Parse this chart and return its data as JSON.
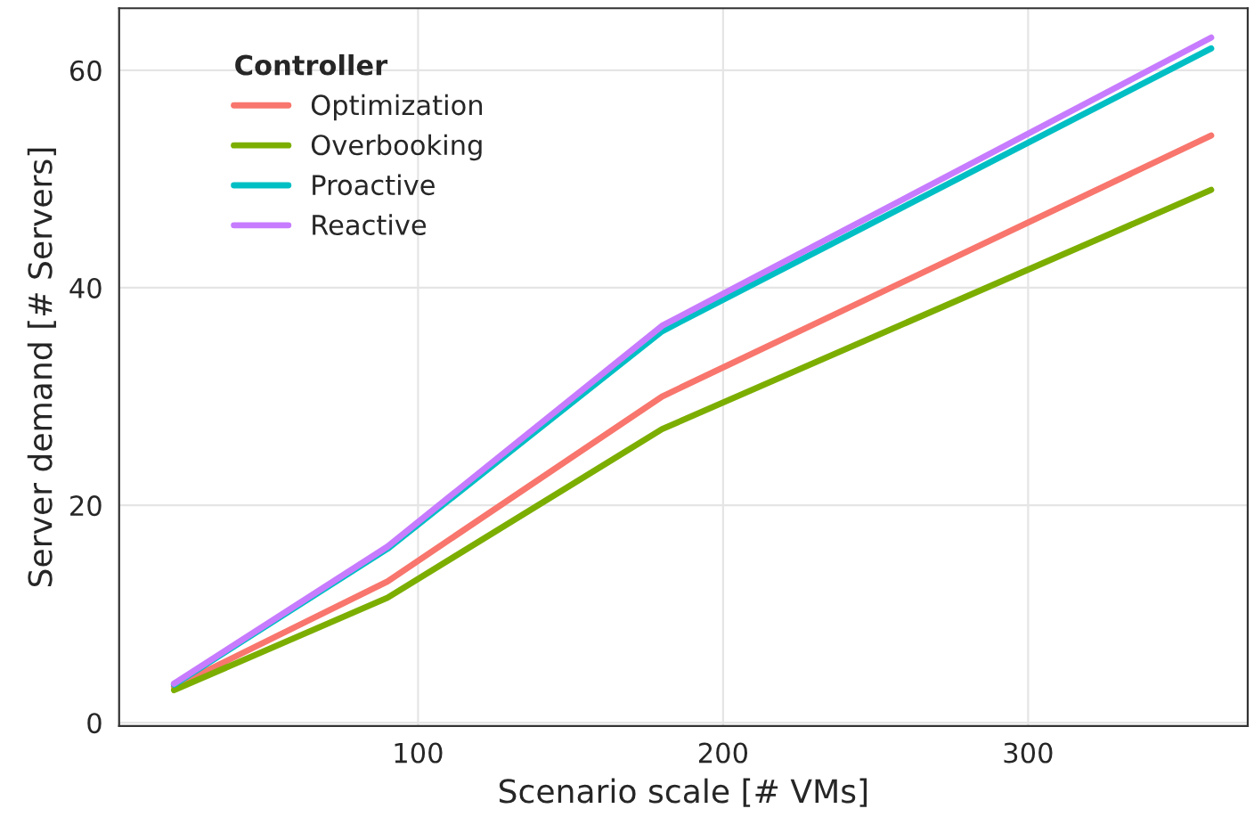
{
  "chart_data": {
    "type": "line",
    "xlabel": "Scenario scale [# VMs]",
    "ylabel": "Server demand [# Servers]",
    "legend_title": "Controller",
    "x": [
      20,
      90,
      180,
      360
    ],
    "series": [
      {
        "name": "Optimization",
        "color": "#f8766d",
        "values": [
          3.3,
          13,
          30,
          54
        ]
      },
      {
        "name": "Overbooking",
        "color": "#7cae00",
        "values": [
          3,
          11.5,
          27,
          49
        ]
      },
      {
        "name": "Proactive",
        "color": "#00bfc4",
        "values": [
          3.5,
          16,
          36,
          62
        ]
      },
      {
        "name": "Reactive",
        "color": "#c77cff",
        "values": [
          3.6,
          16.2,
          36.5,
          63
        ]
      }
    ],
    "xlim": [
      2,
      372
    ],
    "ylim": [
      -0.3,
      65.7
    ],
    "xticks": [
      100,
      200,
      300
    ],
    "yticks": [
      0,
      20,
      40,
      60
    ],
    "grid": true,
    "legend": "top left",
    "marker": "none",
    "line_style": "solid"
  }
}
